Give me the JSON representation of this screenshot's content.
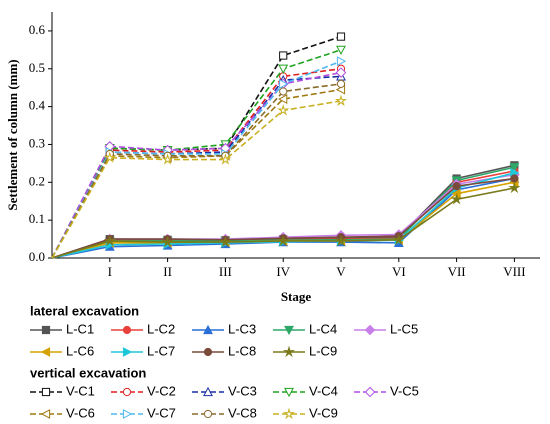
{
  "chart_data": {
    "type": "line",
    "x_label": "Stage",
    "y_label": "Settlement of column (mm)",
    "categories": [
      null,
      "I",
      "II",
      "III",
      "IV",
      "V",
      "VI",
      "VII",
      "VIII"
    ],
    "ylim": [
      0,
      0.65
    ],
    "yticks": [
      {
        "value": 0,
        "label": "0.0"
      },
      0.1,
      0.2,
      0.3,
      0.4,
      0.5,
      0.6
    ],
    "legend_titles": [
      "lateral excavation",
      "vertical excavation"
    ],
    "series": [
      {
        "name": "L-C1",
        "color": "#555555",
        "marker": "square",
        "dashed": false,
        "values": [
          0,
          0.05,
          0.048,
          0.047,
          0.05,
          0.052,
          0.055,
          0.21,
          0.245
        ]
      },
      {
        "name": "L-C2",
        "color": "#e8413c",
        "marker": "circle",
        "dashed": false,
        "values": [
          0,
          0.045,
          0.045,
          0.045,
          0.048,
          0.05,
          0.052,
          0.2,
          0.23
        ]
      },
      {
        "name": "L-C3",
        "color": "#2a6fd6",
        "marker": "triangle-up",
        "dashed": false,
        "values": [
          0,
          0.03,
          0.033,
          0.037,
          0.042,
          0.042,
          0.04,
          0.18,
          0.21
        ]
      },
      {
        "name": "L-C4",
        "color": "#2ea869",
        "marker": "triangle-down",
        "dashed": false,
        "values": [
          0,
          0.045,
          0.045,
          0.045,
          0.047,
          0.048,
          0.05,
          0.205,
          0.24
        ]
      },
      {
        "name": "L-C5",
        "color": "#c77ee8",
        "marker": "diamond",
        "dashed": false,
        "values": [
          0,
          0.05,
          0.05,
          0.05,
          0.055,
          0.06,
          0.062,
          0.195,
          0.22
        ]
      },
      {
        "name": "L-C6",
        "color": "#d4a300",
        "marker": "triangle-left",
        "dashed": false,
        "values": [
          0,
          0.04,
          0.04,
          0.042,
          0.045,
          0.045,
          0.048,
          0.17,
          0.2
        ]
      },
      {
        "name": "L-C7",
        "color": "#1ec8d8",
        "marker": "triangle-right",
        "dashed": false,
        "values": [
          0,
          0.035,
          0.037,
          0.04,
          0.043,
          0.045,
          0.047,
          0.185,
          0.225
        ]
      },
      {
        "name": "L-C8",
        "color": "#7a4a3a",
        "marker": "circle",
        "dashed": false,
        "values": [
          0,
          0.05,
          0.05,
          0.048,
          0.052,
          0.055,
          0.058,
          0.19,
          0.21
        ]
      },
      {
        "name": "L-C9",
        "color": "#7a7a1a",
        "marker": "star",
        "dashed": false,
        "values": [
          0,
          0.045,
          0.042,
          0.042,
          0.045,
          0.045,
          0.048,
          0.155,
          0.185
        ]
      },
      {
        "name": "V-C1",
        "color": "#111111",
        "marker": "square",
        "dashed": true,
        "values": [
          0,
          0.29,
          0.285,
          0.29,
          0.535,
          0.585,
          null,
          null,
          null
        ]
      },
      {
        "name": "V-C2",
        "color": "#e02020",
        "marker": "circle",
        "dashed": true,
        "values": [
          0,
          0.285,
          0.28,
          0.285,
          0.48,
          0.5,
          null,
          null,
          null
        ]
      },
      {
        "name": "V-C3",
        "color": "#1a2fa8",
        "marker": "triangle-up",
        "dashed": true,
        "values": [
          0,
          0.28,
          0.275,
          0.28,
          0.47,
          0.48,
          null,
          null,
          null
        ]
      },
      {
        "name": "V-C4",
        "color": "#1fa31f",
        "marker": "triangle-down",
        "dashed": true,
        "values": [
          0,
          0.29,
          0.285,
          0.3,
          0.5,
          0.55,
          null,
          null,
          null
        ]
      },
      {
        "name": "V-C5",
        "color": "#b04de0",
        "marker": "diamond",
        "dashed": true,
        "values": [
          0,
          0.295,
          0.285,
          0.29,
          0.46,
          0.49,
          null,
          null,
          null
        ]
      },
      {
        "name": "V-C6",
        "color": "#a07a10",
        "marker": "triangle-left",
        "dashed": true,
        "values": [
          0,
          0.27,
          0.265,
          0.27,
          0.42,
          0.445,
          null,
          null,
          null
        ]
      },
      {
        "name": "V-C7",
        "color": "#4fb8f0",
        "marker": "triangle-right",
        "dashed": true,
        "values": [
          0,
          0.28,
          0.275,
          0.275,
          0.46,
          0.52,
          null,
          null,
          null
        ]
      },
      {
        "name": "V-C8",
        "color": "#8a6a2a",
        "marker": "circle",
        "dashed": true,
        "values": [
          0,
          0.275,
          0.27,
          0.27,
          0.44,
          0.46,
          null,
          null,
          null
        ]
      },
      {
        "name": "V-C9",
        "color": "#c8b020",
        "marker": "star",
        "dashed": true,
        "values": [
          0,
          0.265,
          0.26,
          0.26,
          0.39,
          0.415,
          null,
          null,
          null
        ]
      }
    ]
  }
}
